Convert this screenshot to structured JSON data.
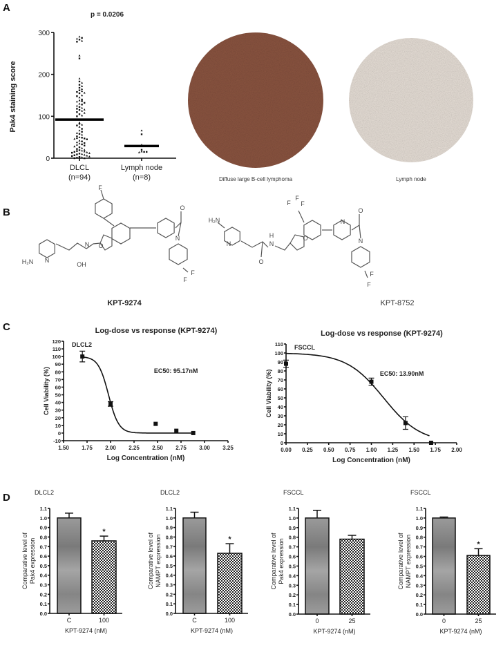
{
  "panel_labels": {
    "a": "A",
    "b": "B",
    "c": "C",
    "d": "D"
  },
  "panel_a": {
    "p_value": "p = 0.0206",
    "ylabel": "Pak4 staining score",
    "groups": [
      "DLCL",
      "Lymph node"
    ],
    "group_n": [
      "(n=94)",
      "(n=8)"
    ],
    "image_captions": [
      "Diffuse large B-cell lymphoma",
      "Lymph node"
    ]
  },
  "panel_b": {
    "compounds": [
      "KPT-9274",
      "KPT-8752"
    ],
    "atoms_9274": [
      "H₂N",
      "N",
      "OH",
      "N",
      "O",
      "F",
      "O",
      "N",
      "F",
      "F"
    ],
    "atoms_8752": [
      "H₂N",
      "N",
      "O",
      "H",
      "N",
      "O",
      "F",
      "F",
      "F",
      "N",
      "O",
      "N",
      "F",
      "F"
    ]
  },
  "colors": {
    "tissue_dlcl": "#8a5440",
    "tissue_lymph": "#e6ded6",
    "bar_control": "#8c8c8c",
    "bar_treated": "#222222"
  },
  "chart_data": [
    {
      "type": "scatter",
      "panel": "A",
      "title": "p = 0.0206",
      "ylabel": "Pak4 staining score",
      "ylim": [
        0,
        300
      ],
      "yticks": [
        0,
        100,
        200,
        300
      ],
      "categories": [
        "DLCL\n(n=94)",
        "Lymph node\n(n=8)"
      ],
      "series": [
        {
          "name": "DLCL",
          "mean": 92,
          "values": [
            290,
            287,
            285,
            283,
            280,
            278,
            245,
            238,
            190,
            183,
            180,
            175,
            172,
            168,
            165,
            162,
            160,
            158,
            156,
            155,
            150,
            148,
            145,
            140,
            138,
            136,
            135,
            132,
            130,
            128,
            125,
            122,
            120,
            118,
            116,
            115,
            113,
            110,
            108,
            105,
            102,
            100,
            85,
            82,
            80,
            78,
            75,
            70,
            66,
            63,
            60,
            58,
            56,
            52,
            50,
            49,
            48,
            47,
            46,
            45,
            42,
            40,
            38,
            36,
            35,
            33,
            32,
            30,
            28,
            26,
            24,
            22,
            20,
            19,
            18,
            17,
            16,
            15,
            14,
            13,
            12,
            11,
            10,
            9,
            8,
            7,
            6,
            5,
            4,
            3,
            2,
            1,
            0,
            0
          ]
        },
        {
          "name": "Lymph node",
          "mean": 29,
          "values": [
            66,
            57,
            32,
            20,
            16,
            15,
            14,
            15
          ]
        }
      ]
    },
    {
      "type": "line",
      "panel": "C-left",
      "title": "Log-dose vs response (KPT-9274)",
      "annotation": "DLCL2",
      "ec50_label": "EC50: 95.17nM",
      "xlabel": "Log Concentration (nM)",
      "ylabel": "Cell Viability (%)",
      "xlim": [
        1.5,
        3.25
      ],
      "ylim": [
        -10,
        120
      ],
      "xticks": [
        "1.50",
        "1.75",
        "2.00",
        "2.25",
        "2.50",
        "2.75",
        "3.00",
        "3.25"
      ],
      "yticks": [
        "-10",
        "0",
        "10",
        "20",
        "30",
        "40",
        "50",
        "60",
        "70",
        "80",
        "90",
        "100",
        "110",
        "120"
      ],
      "points": [
        {
          "x": 1.7,
          "y": 100,
          "err": 7
        },
        {
          "x": 2.0,
          "y": 38,
          "err": 3
        },
        {
          "x": 2.48,
          "y": 12,
          "err": 0
        },
        {
          "x": 2.7,
          "y": 3,
          "err": 0
        },
        {
          "x": 2.88,
          "y": 0,
          "err": 0
        }
      ],
      "fit": {
        "top": 100,
        "bottom": 0,
        "ec50_nM": 95.17,
        "hill": 8,
        "xrange": [
          1.7,
          2.88
        ]
      }
    },
    {
      "type": "line",
      "panel": "C-right",
      "title": "Log-dose vs response (KPT-9274)",
      "annotation": "FSCCL",
      "ec50_label": "EC50: 13.90nM",
      "xlabel": "Log Concentration (nM)",
      "ylabel": "Cell Viability (%)",
      "xlim": [
        0,
        2.0
      ],
      "ylim": [
        0,
        110
      ],
      "xticks": [
        "0.00",
        "0.25",
        "0.50",
        "0.75",
        "1.00",
        "1.25",
        "1.50",
        "1.75",
        "2.00"
      ],
      "yticks": [
        "0",
        "10",
        "20",
        "30",
        "40",
        "50",
        "60",
        "70",
        "80",
        "90",
        "100",
        "110"
      ],
      "points": [
        {
          "x": 0.0,
          "y": 88,
          "err": 4
        },
        {
          "x": 1.0,
          "y": 68,
          "err": 4
        },
        {
          "x": 1.4,
          "y": 22,
          "err": 7
        },
        {
          "x": 1.7,
          "y": 0,
          "err": 0
        }
      ],
      "fit": {
        "top": 100,
        "bottom": 0,
        "ec50_nM": 13.9,
        "hill": 2,
        "xrange": [
          0,
          1.68
        ]
      }
    },
    {
      "type": "bar",
      "panel": "D1",
      "title": "DLCL2",
      "ylabel": [
        "Comparative level of",
        "Pak4 expression"
      ],
      "xlabel": "KPT-9274 (nM)",
      "ylim": [
        0,
        1.1
      ],
      "yticks": [
        "0.0",
        "0.1",
        "0.2",
        "0.3",
        "0.4",
        "0.5",
        "0.6",
        "0.7",
        "0.8",
        "0.9",
        "1.0",
        "1.1"
      ],
      "categories": [
        "C",
        "100"
      ],
      "values": [
        1.0,
        0.76
      ],
      "errors": [
        0.05,
        0.05
      ],
      "significance": [
        "",
        "*"
      ]
    },
    {
      "type": "bar",
      "panel": "D2",
      "title": "DLCL2",
      "ylabel": [
        "Comparative level of",
        "NAMPT expression"
      ],
      "xlabel": "KPT-9274 (nM)",
      "ylim": [
        0,
        1.1
      ],
      "yticks": [
        "0.0",
        "0.1",
        "0.2",
        "0.3",
        "0.4",
        "0.5",
        "0.6",
        "0.7",
        "0.8",
        "0.9",
        "1.0",
        "1.1"
      ],
      "categories": [
        "C",
        "100"
      ],
      "values": [
        1.0,
        0.63
      ],
      "errors": [
        0.06,
        0.1
      ],
      "significance": [
        "",
        "*"
      ]
    },
    {
      "type": "bar",
      "panel": "D3",
      "title": "FSCCL",
      "ylabel": [
        "Comparative level of",
        "Pak4 expression"
      ],
      "xlabel": "KPT-9274 (nM)",
      "ylim": [
        0,
        1.1
      ],
      "yticks": [
        "0.0",
        "0.1",
        "0.2",
        "0.3",
        "0.4",
        "0.5",
        "0.6",
        "0.7",
        "0.8",
        "0.9",
        "1.0",
        "1.1"
      ],
      "categories": [
        "0",
        "25"
      ],
      "values": [
        1.0,
        0.78
      ],
      "errors": [
        0.08,
        0.04
      ],
      "significance": [
        "",
        ""
      ]
    },
    {
      "type": "bar",
      "panel": "D4",
      "title": "FSCCL",
      "ylabel": [
        "Comparative level of",
        "NAMPT expression"
      ],
      "xlabel": "KPT-9274 (nM)",
      "ylim": [
        0,
        1.1
      ],
      "yticks": [
        "0.0",
        "0.1",
        "0.2",
        "0.3",
        "0.4",
        "0.5",
        "0.6",
        "0.7",
        "0.8",
        "0.9",
        "1.0",
        "1.1"
      ],
      "categories": [
        "0",
        "25"
      ],
      "values": [
        1.0,
        0.61
      ],
      "errors": [
        0.01,
        0.07
      ],
      "significance": [
        "",
        "*"
      ]
    }
  ]
}
